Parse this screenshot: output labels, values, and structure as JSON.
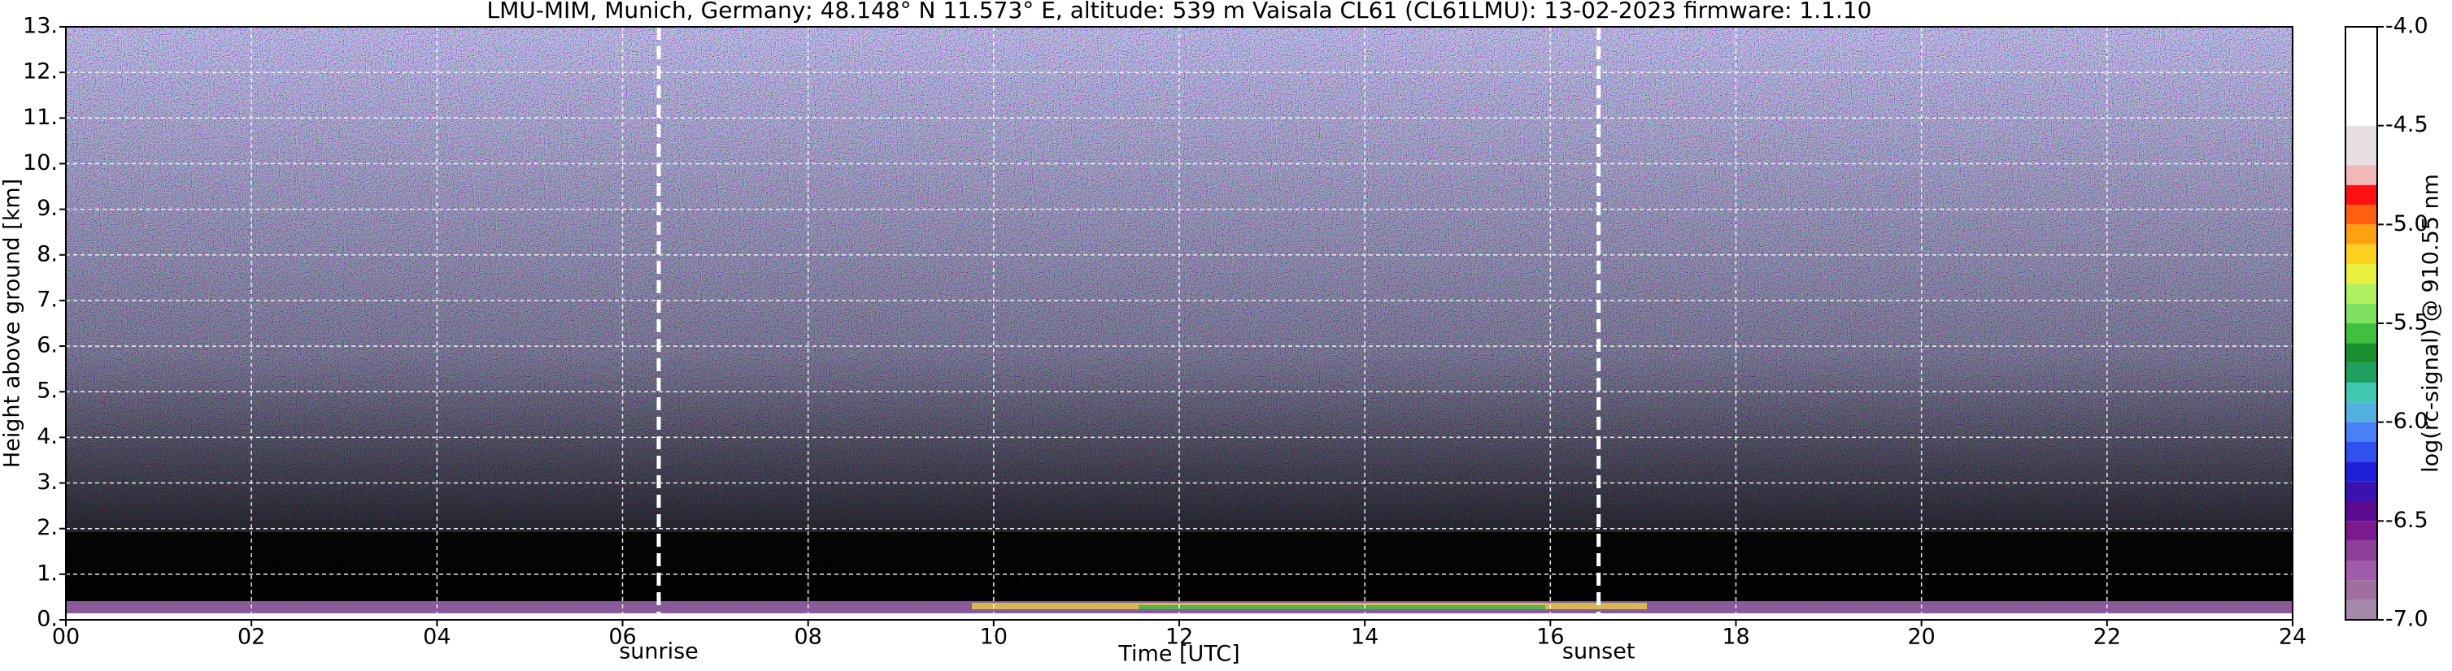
{
  "chart_data": {
    "type": "heatmap",
    "title": "LMU-MIM, Munich, Germany; 48.148° N 11.573° E, altitude: 539 m    Vaisala CL61 (CL61LMU): 13-02-2023    firmware: 1.1.10",
    "xlabel": "Time [UTC]",
    "ylabel": "Height above ground [km]",
    "xlim": [
      0,
      24
    ],
    "xticks": [
      {
        "value": 0,
        "label": "00"
      },
      {
        "value": 2,
        "label": "02"
      },
      {
        "value": 4,
        "label": "04"
      },
      {
        "value": 6,
        "label": "06"
      },
      {
        "value": 8,
        "label": "08"
      },
      10,
      12,
      14,
      16,
      18,
      20,
      22,
      24
    ],
    "ylim": [
      0,
      13
    ],
    "yticks": [
      {
        "value": 0,
        "label": "0."
      },
      {
        "value": 1,
        "label": "1."
      },
      {
        "value": 2,
        "label": "2."
      },
      {
        "value": 3,
        "label": "3."
      },
      {
        "value": 4,
        "label": "4."
      },
      {
        "value": 5,
        "label": "5."
      },
      {
        "value": 6,
        "label": "6."
      },
      {
        "value": 7,
        "label": "7."
      },
      {
        "value": 8,
        "label": "8."
      },
      {
        "value": 9,
        "label": "9."
      },
      {
        "value": 10,
        "label": "10."
      },
      {
        "value": 11,
        "label": "11."
      },
      {
        "value": 12,
        "label": "12."
      },
      {
        "value": 13,
        "label": "13."
      }
    ],
    "grid": true,
    "annotations": [
      {
        "text": "sunrise",
        "x": 6.39
      },
      {
        "text": "sunset",
        "x": 16.52
      }
    ],
    "colorbar": {
      "label": "log(rc-signal) @ 910.55 nm",
      "lim": [
        -7.0,
        -4.0
      ],
      "ticks": [
        {
          "value": -7.0,
          "label": "-7.0"
        },
        {
          "value": -6.5,
          "label": "-6.5"
        },
        {
          "value": -6.0,
          "label": "-6.0"
        },
        {
          "value": -5.5,
          "label": "-5.5"
        },
        {
          "value": -5.0,
          "label": "-5.0"
        },
        {
          "value": -4.5,
          "label": "-4.5"
        },
        {
          "value": -4.0,
          "label": "-4.0"
        }
      ],
      "levels": [
        -7.0,
        -6.9,
        -6.8,
        -6.7,
        -6.6,
        -6.5,
        -6.4,
        -6.3,
        -6.2,
        -6.1,
        -6.0,
        -5.9,
        -5.8,
        -5.7,
        -5.6,
        -5.5,
        -5.4,
        -5.3,
        -5.2,
        -5.1,
        -5.0,
        -4.9,
        -4.8,
        -4.7,
        -4.5,
        -4.0
      ],
      "colors": [
        "#a38aa8",
        "#9e6fa0",
        "#a05ca8",
        "#8d3f99",
        "#7a1a8c",
        "#5a0a8c",
        "#3a12b0",
        "#2020d8",
        "#3050f0",
        "#4a80f5",
        "#50b0e0",
        "#40c8b0",
        "#20a060",
        "#189030",
        "#40c040",
        "#80e060",
        "#b0f060",
        "#e8f040",
        "#ffd020",
        "#ffa010",
        "#ff6010",
        "#ff1010",
        "#f0b8b8",
        "#e8e0e0",
        "#ffffff"
      ]
    }
  }
}
